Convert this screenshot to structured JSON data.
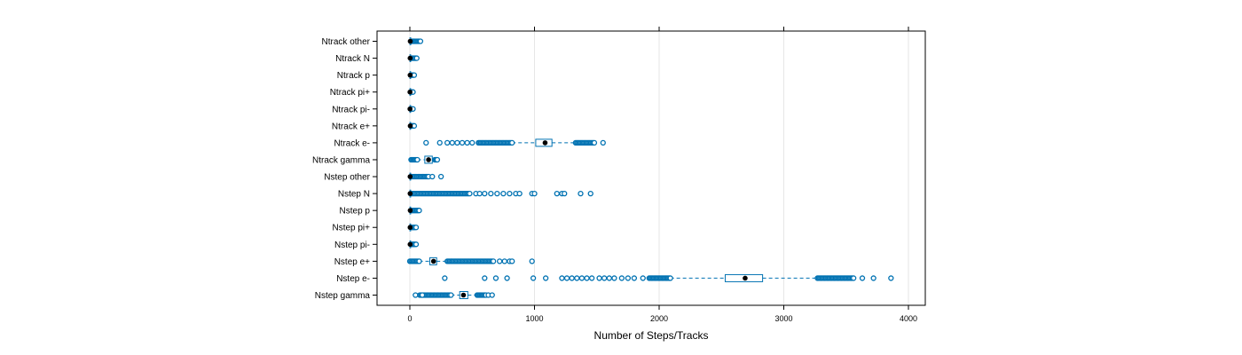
{
  "chart_data": {
    "type": "boxplot",
    "title": "",
    "xlabel": "Number of Steps/Tracks",
    "ylabel": "",
    "xlim": [
      -250,
      4150
    ],
    "xticks": [
      0,
      1000,
      2000,
      3000,
      4000
    ],
    "xtick_labels": [
      "0",
      "1000",
      "2000",
      "3000",
      "4000"
    ],
    "grid": "vertical",
    "colors": {
      "box": "#0072b2",
      "median": "#000000",
      "grid": "#e6e6e6",
      "frame": "#000000"
    },
    "categories": [
      "Nstep gamma",
      "Nstep e-",
      "Nstep e+",
      "Nstep pi-",
      "Nstep pi+",
      "Nstep p",
      "Nstep N",
      "Nstep other",
      "Ntrack gamma",
      "Ntrack e-",
      "Ntrack e+",
      "Ntrack pi-",
      "Ntrack pi+",
      "Ntrack p",
      "Ntrack N",
      "Ntrack other"
    ],
    "boxes": [
      {
        "name": "Nstep gamma",
        "q1": 400,
        "median": 430,
        "q3": 465,
        "whisker_low": 330,
        "whisker_high": 540,
        "outlier_dense": [
          [
            80,
            330
          ],
          [
            540,
            610
          ]
        ],
        "outliers": [
          45,
          100,
          630,
          660
        ]
      },
      {
        "name": "Nstep e-",
        "q1": 2530,
        "median": 2690,
        "q3": 2830,
        "whisker_low": 2090,
        "whisker_high": 3270,
        "outlier_dense": [
          [
            1920,
            2090
          ],
          [
            3270,
            3560
          ]
        ],
        "outliers": [
          280,
          600,
          690,
          780,
          990,
          1090,
          1220,
          1260,
          1300,
          1340,
          1380,
          1420,
          1460,
          1520,
          1560,
          1600,
          1640,
          1700,
          1750,
          1800,
          1870,
          3630,
          3720,
          3860
        ]
      },
      {
        "name": "Nstep e+",
        "q1": 160,
        "median": 190,
        "q3": 215,
        "whisker_low": 75,
        "whisker_high": 300,
        "outlier_dense": [
          [
            0,
            75
          ],
          [
            300,
            670
          ]
        ],
        "outliers": [
          720,
          760,
          800,
          820,
          980
        ]
      },
      {
        "name": "Nstep pi-",
        "q1": 0,
        "median": 2,
        "q3": 6,
        "whisker_low": 0,
        "whisker_high": 14,
        "outlier_dense": [
          [
            14,
            40
          ]
        ],
        "outliers": [
          50
        ]
      },
      {
        "name": "Nstep pi+",
        "q1": 0,
        "median": 2,
        "q3": 6,
        "whisker_low": 0,
        "whisker_high": 14,
        "outlier_dense": [
          [
            14,
            40
          ]
        ],
        "outliers": [
          50
        ]
      },
      {
        "name": "Nstep p",
        "q1": 0,
        "median": 3,
        "q3": 6,
        "whisker_low": 0,
        "whisker_high": 12,
        "outlier_dense": [
          [
            12,
            75
          ]
        ],
        "outliers": []
      },
      {
        "name": "Nstep N",
        "q1": 0,
        "median": 2,
        "q3": 6,
        "whisker_low": 0,
        "whisker_high": 12,
        "outlier_dense": [
          [
            12,
            480
          ]
        ],
        "outliers": [
          530,
          560,
          600,
          650,
          700,
          750,
          800,
          850,
          880,
          980,
          1000,
          1180,
          1220,
          1240,
          1370,
          1450
        ]
      },
      {
        "name": "Nstep other",
        "q1": 0,
        "median": 2,
        "q3": 5,
        "whisker_low": 0,
        "whisker_high": 10,
        "outlier_dense": [
          [
            10,
            140
          ]
        ],
        "outliers": [
          150,
          180,
          250
        ]
      },
      {
        "name": "Ntrack gamma",
        "q1": 120,
        "median": 150,
        "q3": 180,
        "whisker_low": 60,
        "whisker_high": 200,
        "outlier_dense": [
          [
            10,
            60
          ],
          [
            200,
            220
          ]
        ],
        "outliers": []
      },
      {
        "name": "Ntrack e-",
        "q1": 1010,
        "median": 1085,
        "q3": 1140,
        "whisker_low": 820,
        "whisker_high": 1330,
        "outlier_dense": [
          [
            550,
            820
          ],
          [
            1330,
            1480
          ]
        ],
        "outliers": [
          130,
          240,
          300,
          340,
          380,
          420,
          460,
          500,
          1550
        ]
      },
      {
        "name": "Ntrack e+",
        "q1": 0,
        "median": 3,
        "q3": 6,
        "whisker_low": 0,
        "whisker_high": 12,
        "outlier_dense": [
          [
            12,
            35
          ]
        ],
        "outliers": []
      },
      {
        "name": "Ntrack pi-",
        "q1": 0,
        "median": 1,
        "q3": 3,
        "whisker_low": 0,
        "whisker_high": 6,
        "outlier_dense": [
          [
            6,
            25
          ]
        ],
        "outliers": []
      },
      {
        "name": "Ntrack pi+",
        "q1": 0,
        "median": 1,
        "q3": 3,
        "whisker_low": 0,
        "whisker_high": 6,
        "outlier_dense": [
          [
            6,
            25
          ]
        ],
        "outliers": []
      },
      {
        "name": "Ntrack p",
        "q1": 0,
        "median": 2,
        "q3": 5,
        "whisker_low": 0,
        "whisker_high": 10,
        "outlier_dense": [
          [
            10,
            35
          ]
        ],
        "outliers": []
      },
      {
        "name": "Ntrack N",
        "q1": 0,
        "median": 2,
        "q3": 5,
        "whisker_low": 0,
        "whisker_high": 10,
        "outlier_dense": [
          [
            10,
            55
          ]
        ],
        "outliers": []
      },
      {
        "name": "Ntrack other",
        "q1": 0,
        "median": 3,
        "q3": 8,
        "whisker_low": 0,
        "whisker_high": 15,
        "outlier_dense": [
          [
            15,
            85
          ]
        ],
        "outliers": []
      }
    ]
  }
}
